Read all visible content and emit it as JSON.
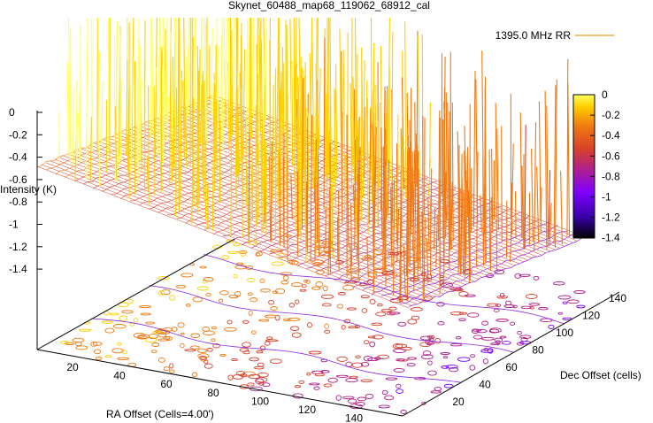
{
  "chart_data": {
    "type": "surface3d",
    "title": "Skynet_60488_map68_119062_68912_cal",
    "legend": {
      "label": "1395.0 MHz RR",
      "placement": "top-right"
    },
    "zlabel": "Intensity (K)",
    "xlabel": "RA Offset (Cells=4.00')",
    "ylabel": "Dec Offset (cells)",
    "z_ticks": [
      "0",
      "-0.2",
      "-0.4",
      "-0.6",
      "-0.8",
      "-1",
      "-1.2",
      "-1.4"
    ],
    "x_ticks": [
      "20",
      "40",
      "60",
      "80",
      "100",
      "120",
      "140"
    ],
    "y_ticks": [
      "20",
      "40",
      "60",
      "80",
      "100",
      "120",
      "140"
    ],
    "colorbar": {
      "ticks": [
        "0",
        "-0.2",
        "-0.4",
        "-0.6",
        "-0.8",
        "-1",
        "-1.2",
        "-1.4"
      ],
      "range": [
        -1.4,
        0
      ],
      "palette": [
        "#000000",
        "#3a00a8",
        "#7f00ff",
        "#b0208c",
        "#d8402a",
        "#f07a10",
        "#ffd000",
        "#ffff60"
      ]
    },
    "zlim": [
      -1.4,
      0
    ],
    "xlim": [
      0,
      150
    ],
    "ylim": [
      0,
      150
    ],
    "grid": false
  }
}
